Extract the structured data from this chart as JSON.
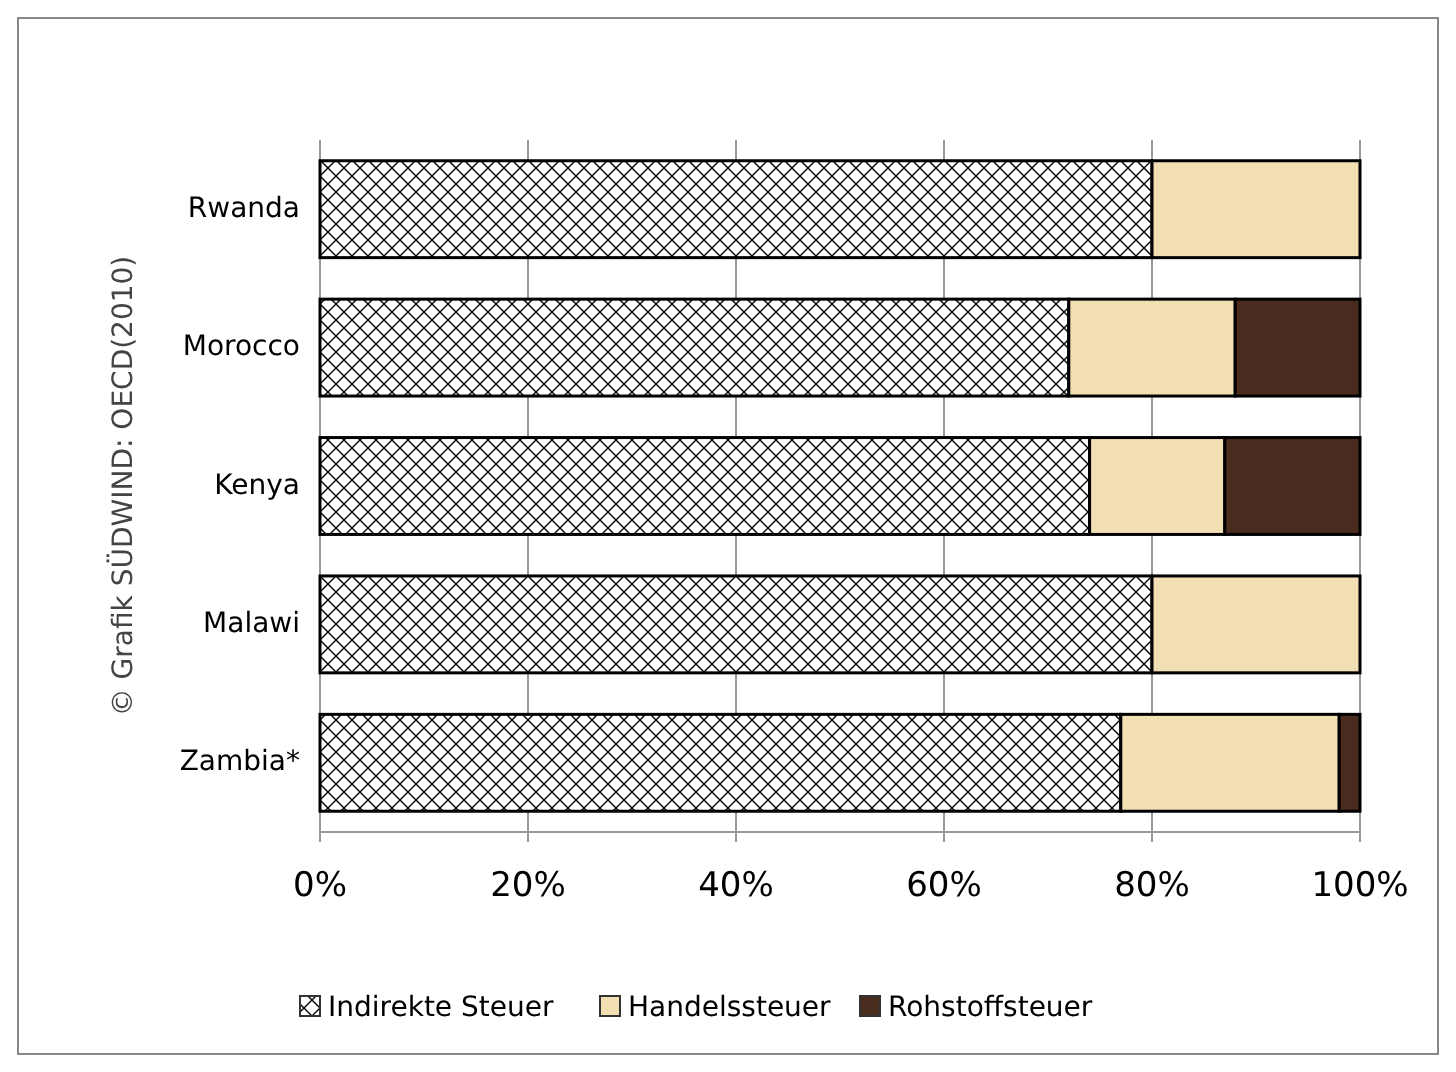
{
  "chart_data": {
    "type": "bar",
    "orientation": "horizontal",
    "stacked": true,
    "categories": [
      "Rwanda",
      "Morocco",
      "Kenya",
      "Malawi",
      "Zambia*"
    ],
    "series": [
      {
        "name": "Indirekte Steuer",
        "color": "#000000",
        "values": [
          80,
          72,
          74,
          80,
          77
        ]
      },
      {
        "name": "Handelssteuer",
        "color": "#f3dfb4",
        "values": [
          20,
          16,
          13,
          20,
          21
        ]
      },
      {
        "name": "Rohstoffsteuer",
        "color": "#4a2c1e",
        "values": [
          0,
          12,
          13,
          0,
          2
        ]
      }
    ],
    "xlim": [
      0,
      100
    ],
    "xticks": [
      {
        "value": 0,
        "label": "0%"
      },
      {
        "value": 20,
        "label": "20%"
      },
      {
        "value": 40,
        "label": "40%"
      },
      {
        "value": 60,
        "label": "60%"
      },
      {
        "value": 80,
        "label": "80%"
      },
      {
        "value": 100,
        "label": "100%"
      }
    ],
    "grid": "x",
    "legend": "bottom",
    "annotations": [
      "© Grafik SÜDWIND: OECD(2010)"
    ]
  }
}
